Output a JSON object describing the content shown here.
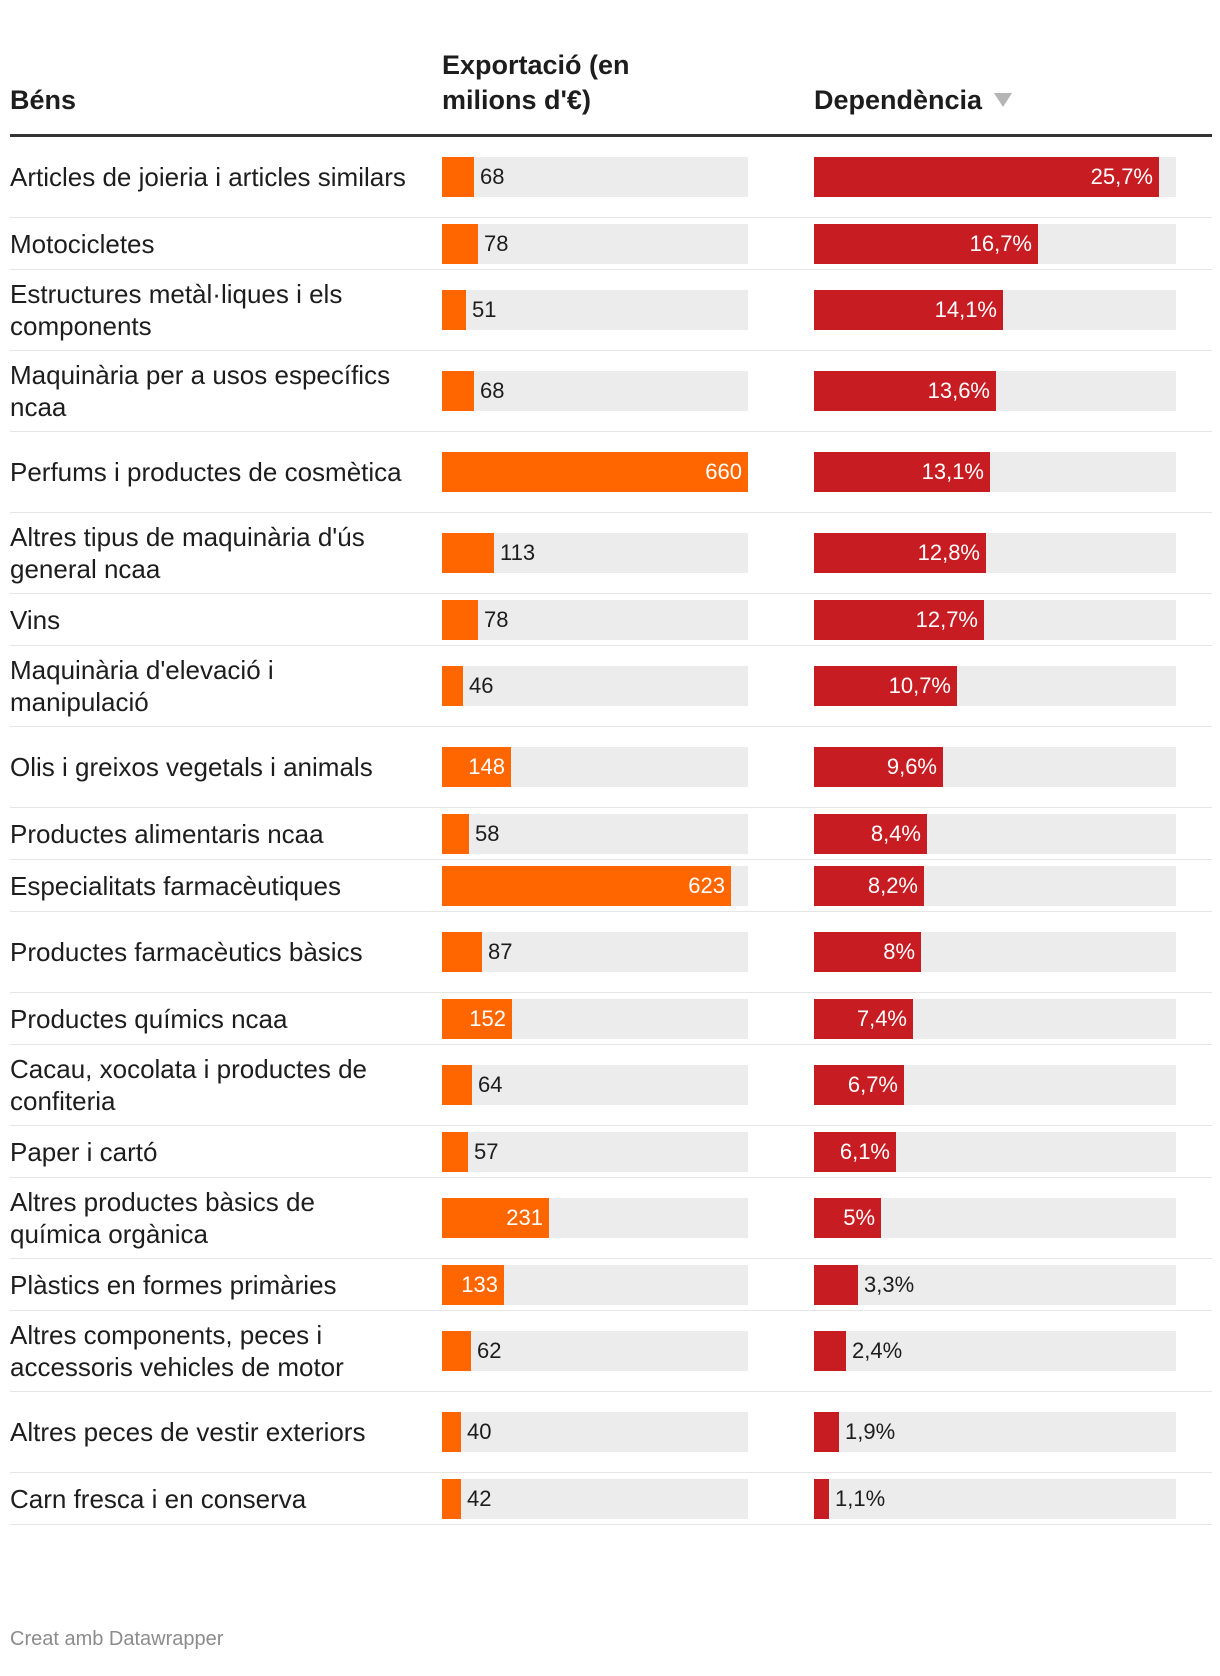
{
  "header": {
    "col_bens": "Béns",
    "col_exp_line1": "Exportació (en",
    "col_exp_line2": "milions d'€)",
    "col_dep": "Dependència",
    "sort_icon": "triangle-down-icon"
  },
  "colors": {
    "export_bar": "#ff6600",
    "dependence_bar": "#c71c22",
    "track": "#ececec"
  },
  "chart_data": {
    "type": "table",
    "columns": [
      "Béns",
      "Exportació (en milions d'€)",
      "Dependència"
    ],
    "export_max": 660,
    "dependence_max": 27.0,
    "rows": [
      {
        "bens": "Articles de joieria i articles similars",
        "export": 68,
        "export_label": "68",
        "dependence": 25.7,
        "dependence_label": "25,7%"
      },
      {
        "bens": "Motocicletes",
        "export": 78,
        "export_label": "78",
        "dependence": 16.7,
        "dependence_label": "16,7%"
      },
      {
        "bens": "Estructures metàl·liques i els components",
        "export": 51,
        "export_label": "51",
        "dependence": 14.1,
        "dependence_label": "14,1%"
      },
      {
        "bens": "Maquinària per a usos específics ncaa",
        "export": 68,
        "export_label": "68",
        "dependence": 13.6,
        "dependence_label": "13,6%"
      },
      {
        "bens": "Perfums i productes de cosmètica",
        "export": 660,
        "export_label": "660",
        "dependence": 13.1,
        "dependence_label": "13,1%"
      },
      {
        "bens": "Altres tipus de maquinària d'ús general ncaa",
        "export": 113,
        "export_label": "113",
        "dependence": 12.8,
        "dependence_label": "12,8%"
      },
      {
        "bens": "Vins",
        "export": 78,
        "export_label": "78",
        "dependence": 12.7,
        "dependence_label": "12,7%"
      },
      {
        "bens": "Maquinària d'elevació i manipulació",
        "export": 46,
        "export_label": "46",
        "dependence": 10.7,
        "dependence_label": "10,7%"
      },
      {
        "bens": "Olis i greixos vegetals i animals",
        "export": 148,
        "export_label": "148",
        "dependence": 9.6,
        "dependence_label": "9,6%"
      },
      {
        "bens": "Productes alimentaris ncaa",
        "export": 58,
        "export_label": "58",
        "dependence": 8.4,
        "dependence_label": "8,4%"
      },
      {
        "bens": "Especialitats farmacèutiques",
        "export": 623,
        "export_label": "623",
        "dependence": 8.2,
        "dependence_label": "8,2%"
      },
      {
        "bens": "Productes farmacèutics bàsics",
        "export": 87,
        "export_label": "87",
        "dependence": 8.0,
        "dependence_label": "8%"
      },
      {
        "bens": "Productes químics ncaa",
        "export": 152,
        "export_label": "152",
        "dependence": 7.4,
        "dependence_label": "7,4%"
      },
      {
        "bens": "Cacau, xocolata i productes de confiteria",
        "export": 64,
        "export_label": "64",
        "dependence": 6.7,
        "dependence_label": "6,7%"
      },
      {
        "bens": "Paper i cartó",
        "export": 57,
        "export_label": "57",
        "dependence": 6.1,
        "dependence_label": "6,1%"
      },
      {
        "bens": "Altres productes bàsics de química orgànica",
        "export": 231,
        "export_label": "231",
        "dependence": 5.0,
        "dependence_label": "5%"
      },
      {
        "bens": "Plàstics en formes primàries",
        "export": 133,
        "export_label": "133",
        "dependence": 3.3,
        "dependence_label": "3,3%"
      },
      {
        "bens": "Altres components, peces i accessoris vehicles de motor",
        "export": 62,
        "export_label": "62",
        "dependence": 2.4,
        "dependence_label": "2,4%"
      },
      {
        "bens": "Altres peces de vestir exteriors",
        "export": 40,
        "export_label": "40",
        "dependence": 1.9,
        "dependence_label": "1,9%"
      },
      {
        "bens": "Carn fresca i en conserva",
        "export": 42,
        "export_label": "42",
        "dependence": 1.1,
        "dependence_label": "1,1%"
      }
    ]
  },
  "footer": {
    "credit": "Creat amb Datawrapper"
  }
}
